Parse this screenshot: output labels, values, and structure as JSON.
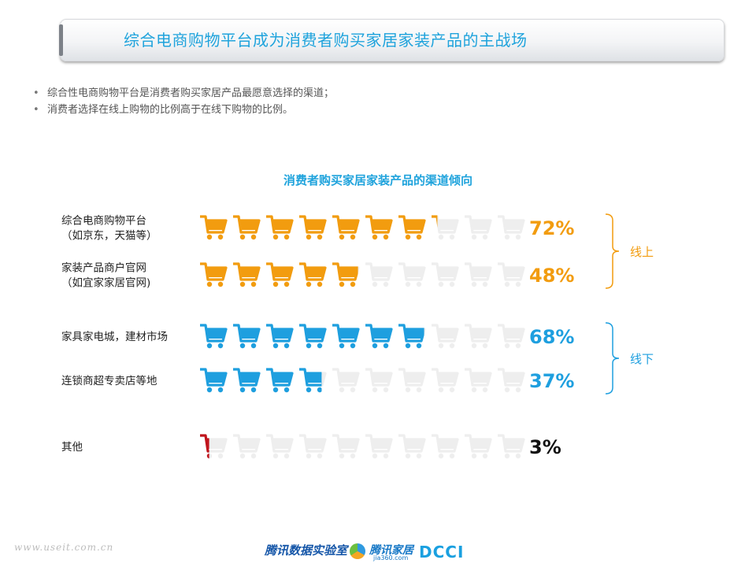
{
  "header": {
    "title": "综合电商购物平台成为消费者购买家居家装产品的主战场"
  },
  "bullets": [
    "综合性电商购物平台是消费者购买家居产品最愿意选择的渠道；",
    "消费者选择在线上购物的比例高于在线下购物的比例。"
  ],
  "colors": {
    "online": "#f29c0f",
    "offline": "#1e9fdf",
    "other": "#c0141c",
    "empty": "#eeeeee",
    "bracket": "#f29c0f",
    "bracket_offline": "#1e9fdf",
    "title": "#1fa3dc"
  },
  "chart_data": {
    "type": "bar",
    "title": "消费者购买家居家装产品的渠道倾向",
    "unit": "%",
    "icon": "shopping-cart-icon",
    "rows": [
      {
        "label": [
          "综合电商购物平台",
          "（如京东，天猫等）"
        ],
        "value": 72,
        "display": "72%",
        "group": "online"
      },
      {
        "label": [
          "家装产品商户官网",
          "（如宜家家居官网)"
        ],
        "value": 48,
        "display": "48%",
        "group": "online"
      },
      {
        "label": [
          "家具家电城，建材市场"
        ],
        "value": 68,
        "display": "68%",
        "group": "offline"
      },
      {
        "label": [
          "连锁商超专卖店等地"
        ],
        "value": 37,
        "display": "37%",
        "group": "offline"
      },
      {
        "label": [
          "其他"
        ],
        "value": 3,
        "display": "3%",
        "group": "other"
      }
    ],
    "groups": [
      {
        "key": "online",
        "label": "线上"
      },
      {
        "key": "offline",
        "label": "线下"
      }
    ],
    "icons_per_row": 10,
    "xlim": [
      0,
      100
    ]
  },
  "footer": {
    "watermark": "www.useit.com.cn",
    "lab": "腾讯数据实验室",
    "tencent_home": "腾讯家居",
    "tencent_home_sub": "jia360.com",
    "dcci": "DCCI"
  }
}
